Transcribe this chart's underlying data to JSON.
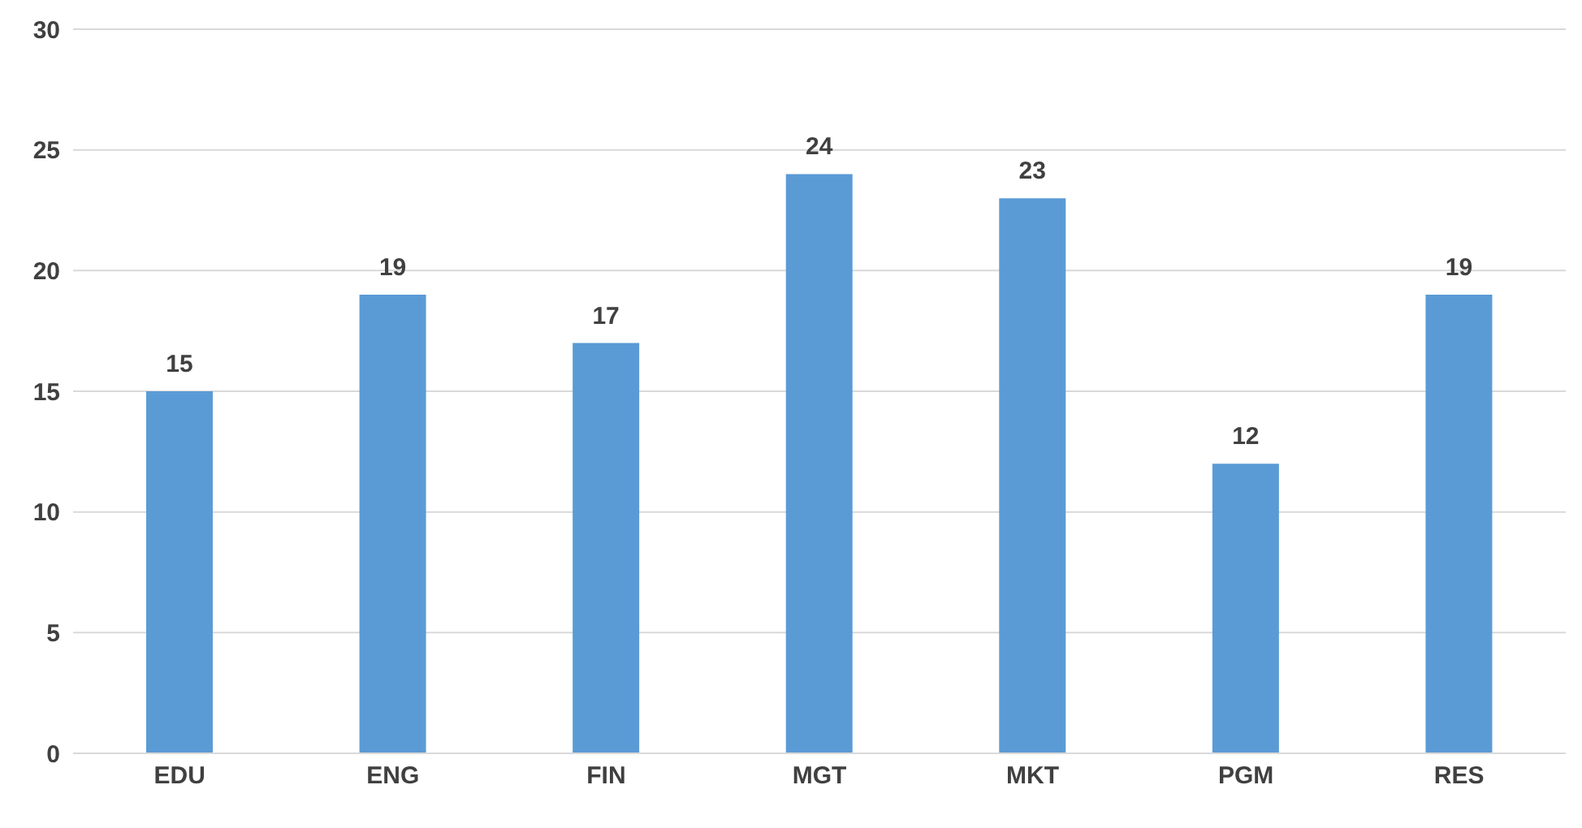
{
  "chart_data": {
    "type": "bar",
    "categories": [
      "EDU",
      "ENG",
      "FIN",
      "MGT",
      "MKT",
      "PGM",
      "RES"
    ],
    "values": [
      15,
      19,
      17,
      24,
      23,
      12,
      19
    ],
    "color": "#5b9bd5",
    "ylim": [
      0,
      30
    ],
    "yticks": [
      0,
      5,
      10,
      15,
      20,
      25,
      30
    ],
    "grid": "y",
    "data_labels": true
  }
}
